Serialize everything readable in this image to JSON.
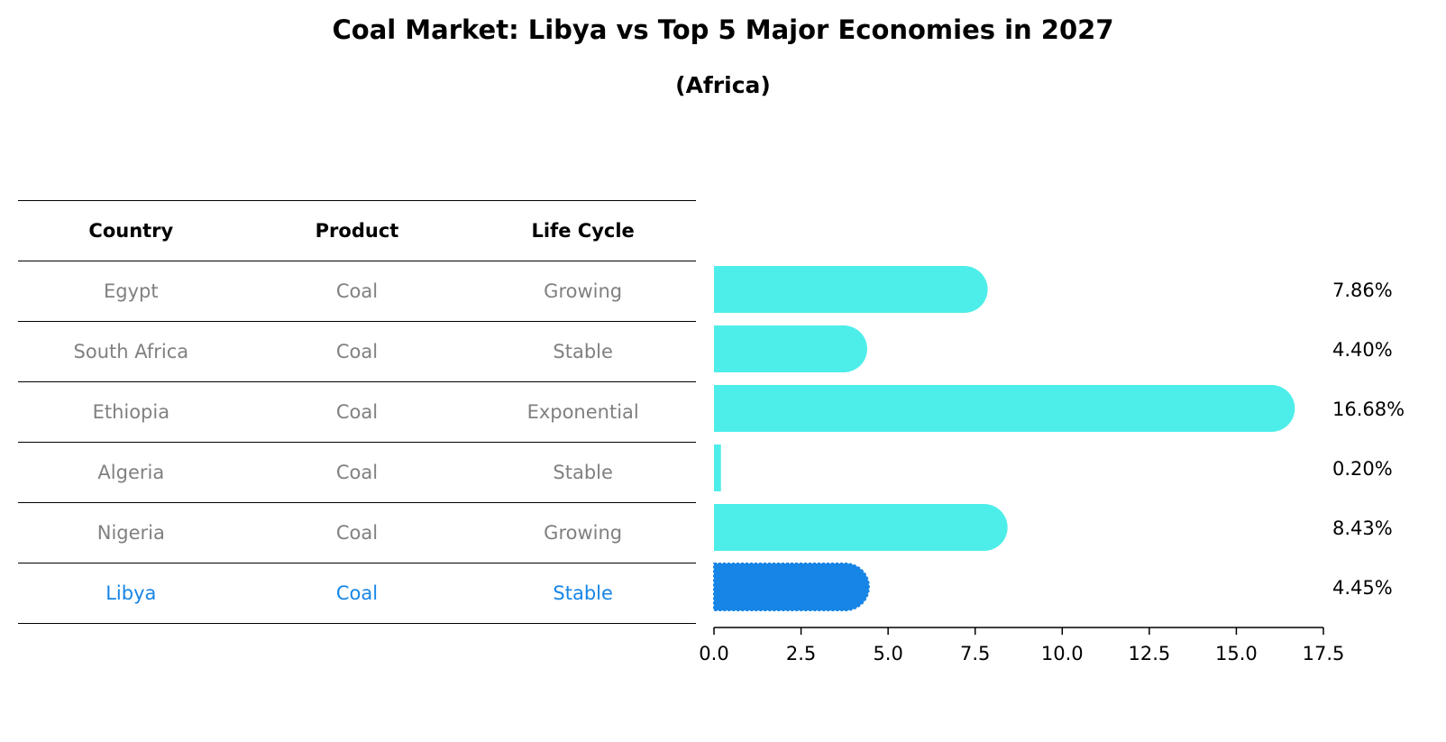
{
  "title": "Coal Market: Libya vs Top 5 Major Economies in 2027",
  "subtitle": "(Africa)",
  "table": {
    "headers": [
      "Country",
      "Product",
      "Life Cycle"
    ],
    "rows": [
      [
        "Egypt",
        "Coal",
        "Growing"
      ],
      [
        "South Africa",
        "Coal",
        "Stable"
      ],
      [
        "Ethiopia",
        "Coal",
        "Exponential"
      ],
      [
        "Algeria",
        "Coal",
        "Stable"
      ],
      [
        "Nigeria",
        "Coal",
        "Growing"
      ],
      [
        "Libya",
        "Coal",
        "Stable"
      ]
    ],
    "highlight_row": 5
  },
  "colors": {
    "bar": "#4deeea",
    "highlight": "#1785e6",
    "muted_text": "#808080"
  },
  "chart_data": {
    "type": "bar",
    "orientation": "horizontal",
    "categories": [
      "Egypt",
      "South Africa",
      "Ethiopia",
      "Algeria",
      "Nigeria",
      "Libya"
    ],
    "values": [
      7.86,
      4.4,
      16.68,
      0.2,
      8.43,
      4.45
    ],
    "value_labels": [
      "7.86%",
      "4.40%",
      "16.68%",
      "0.20%",
      "8.43%",
      "4.45%"
    ],
    "highlight": "Libya",
    "xlim": [
      0,
      17.5
    ],
    "xticks": [
      0.0,
      2.5,
      5.0,
      7.5,
      10.0,
      12.5,
      15.0,
      17.5
    ],
    "xtick_labels": [
      "0.0",
      "2.5",
      "5.0",
      "7.5",
      "10.0",
      "12.5",
      "15.0",
      "17.5"
    ],
    "xlabel": "",
    "ylabel": "",
    "grid": false
  }
}
